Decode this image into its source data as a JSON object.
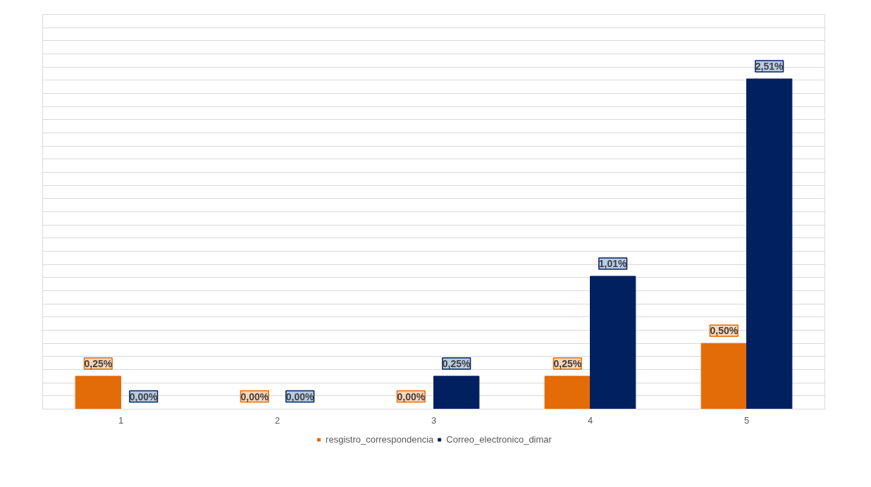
{
  "chart_data": {
    "type": "bar",
    "categories": [
      "1",
      "2",
      "3",
      "4",
      "5"
    ],
    "series": [
      {
        "name": "resgistro_correspondencia",
        "color": "#e36c09",
        "values": [
          0.25,
          0,
          0,
          0.25,
          0.5
        ],
        "value_labels": [
          "0,25%",
          "0,00%",
          "0,00%",
          "0,25%",
          "0,50%"
        ]
      },
      {
        "name": "Correo_electronico_dimar",
        "color": "#002060",
        "values": [
          0,
          0,
          0.25,
          1.01,
          2.51
        ],
        "value_labels": [
          "0,00%",
          "0,00%",
          "0,25%",
          "1,01%",
          "2,51%"
        ]
      }
    ],
    "ylim": [
      0,
      3
    ],
    "yticks": [
      {
        "value": 0,
        "label": null
      },
      {
        "value": 0.1,
        "label": null
      },
      {
        "value": 0.2,
        "label": null
      },
      {
        "value": 0.3,
        "label": null
      },
      {
        "value": 0.4,
        "label": null
      },
      {
        "value": 0.5,
        "label": null
      },
      {
        "value": 0.6,
        "label": null
      },
      {
        "value": 0.7,
        "label": null
      },
      {
        "value": 0.8,
        "label": null
      },
      {
        "value": 0.9,
        "label": null
      },
      {
        "value": 1,
        "label": null
      },
      {
        "value": 1.1,
        "label": null
      },
      {
        "value": 1.2,
        "label": null
      },
      {
        "value": 1.3,
        "label": null
      },
      {
        "value": 1.4,
        "label": null
      },
      {
        "value": 1.5,
        "label": null
      },
      {
        "value": 1.6,
        "label": null
      },
      {
        "value": 1.7,
        "label": null
      },
      {
        "value": 1.8,
        "label": null
      },
      {
        "value": 1.9,
        "label": null
      },
      {
        "value": 2,
        "label": null
      },
      {
        "value": 2.1,
        "label": null
      },
      {
        "value": 2.2,
        "label": null
      },
      {
        "value": 2.3,
        "label": null
      },
      {
        "value": 2.4,
        "label": null
      },
      {
        "value": 2.5,
        "label": null
      },
      {
        "value": 2.6,
        "label": null
      },
      {
        "value": 2.7,
        "label": null
      },
      {
        "value": 2.8,
        "label": null
      },
      {
        "value": 2.9,
        "label": null
      },
      {
        "value": 3,
        "label": null
      }
    ],
    "tick_labels": "x",
    "grid": "y",
    "legend": "bottom"
  }
}
